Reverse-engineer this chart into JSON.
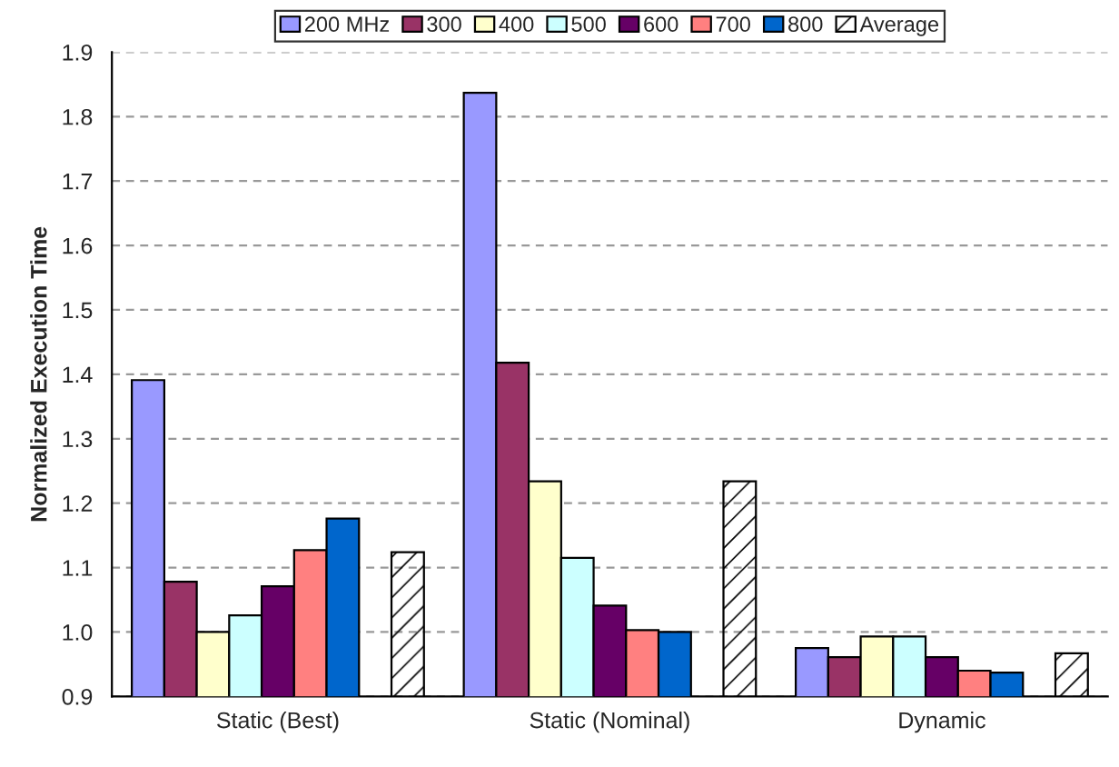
{
  "chart_data": {
    "type": "bar",
    "ylabel": "Normalized Execution Time",
    "categories": [
      "Static (Best)",
      "Static (Nominal)",
      "Dynamic"
    ],
    "series": [
      {
        "name": "200 MHz",
        "color": "#9999ff",
        "values": [
          1.391,
          1.837,
          0.975
        ]
      },
      {
        "name": "300",
        "color": "#993366",
        "values": [
          1.078,
          1.418,
          0.961
        ]
      },
      {
        "name": "400",
        "color": "#ffffcc",
        "values": [
          1.0,
          1.234,
          0.993
        ]
      },
      {
        "name": "500",
        "color": "#ccffff",
        "values": [
          1.026,
          1.115,
          0.993
        ]
      },
      {
        "name": "600",
        "color": "#660066",
        "values": [
          1.071,
          1.041,
          0.961
        ]
      },
      {
        "name": "700",
        "color": "#ff8080",
        "values": [
          1.127,
          1.003,
          0.94
        ]
      },
      {
        "name": "800",
        "color": "#0066cc",
        "values": [
          1.176,
          1.0,
          0.937
        ]
      },
      {
        "name": "Average",
        "color": "#000000",
        "values": [
          1.124,
          1.234,
          0.967
        ]
      }
    ],
    "ylim": [
      0.9,
      1.9
    ],
    "yticks": [
      {
        "value": 0.9,
        "label": "0.9"
      },
      {
        "value": 1.0,
        "label": "1.0"
      },
      {
        "value": 1.1,
        "label": "1.1"
      },
      {
        "value": 1.2,
        "label": "1.2"
      },
      {
        "value": 1.3,
        "label": "1.3"
      },
      {
        "value": 1.4,
        "label": "1.4"
      },
      {
        "value": 1.5,
        "label": "1.5"
      },
      {
        "value": 1.6,
        "label": "1.6"
      },
      {
        "value": 1.7,
        "label": "1.7"
      },
      {
        "value": 1.8,
        "label": "1.8"
      },
      {
        "value": 1.9,
        "label": "1.9"
      }
    ],
    "grid": "y",
    "legend": "top"
  }
}
